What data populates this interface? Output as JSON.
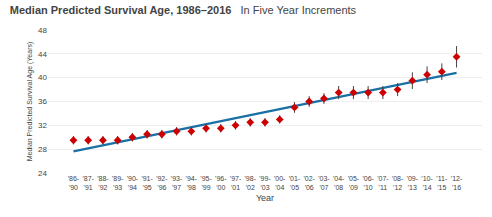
{
  "chart_data": {
    "type": "scatter",
    "title": "Median Predicted Survival Age, 1986–2016",
    "subtitle": "In Five Year Increments",
    "xlabel": "Year",
    "ylabel": "Median Predicted Survival Age (Years)",
    "categories": [
      "'86-\n'90",
      "'87-\n'91",
      "'88-\n'92",
      "'89-\n'93",
      "'90-\n'94",
      "'91-\n'95",
      "'92-\n'96",
      "'93-\n'97",
      "'94-\n'98",
      "'95-\n'99",
      "'96-\n'00",
      "'97-\n'01",
      "'98-\n'02",
      "'99-\n'03",
      "'00-\n'04",
      "'01-\n'05",
      "'02-\n'06",
      "'03-\n'07",
      "'04-\n'08",
      "'05-\n'09",
      "'06-\n'10",
      "'07-\n'11",
      "'08-\n'12",
      "'09-\n'13",
      "'10-\n'14",
      "'11-\n'15",
      "'12-\n'16"
    ],
    "series": [
      {
        "type": "line",
        "color": "#1A6FA5",
        "values": [
          27.6389,
          28.1453,
          28.6517,
          29.1581,
          29.6645,
          30.1709,
          30.6774,
          31.1838,
          31.6902,
          32.1966,
          32.703,
          33.2094,
          33.7158,
          34.2222,
          34.7286,
          35.235,
          35.7415,
          36.2479,
          36.7543,
          37.2607,
          37.7671,
          38.2735,
          38.7799,
          39.2863,
          39.7927,
          40.2991,
          40.8056
        ]
      },
      {
        "type": "scatter",
        "marker": "diamond",
        "color": "#CC0000",
        "values": [
          29.5,
          29.5,
          29.5,
          29.5,
          30.0,
          30.5,
          30.5,
          31.0,
          31.0,
          31.5,
          31.5,
          32.0,
          32.5,
          32.5,
          33.0,
          35.0,
          36.0,
          36.5,
          37.5,
          37.5,
          37.5,
          37.5,
          38.0,
          39.5,
          40.5,
          41.0,
          43.5
        ],
        "err_low": [
          0.7,
          0.7,
          0.7,
          0.7,
          0.7,
          0.7,
          0.7,
          0.7,
          0.7,
          0.7,
          0.7,
          0.7,
          0.7,
          0.7,
          0.7,
          0.9,
          0.9,
          0.9,
          1.1,
          1.1,
          1.1,
          1.1,
          1.1,
          1.4,
          1.4,
          1.4,
          1.8
        ],
        "err_high": [
          0.7,
          0.7,
          0.7,
          0.7,
          0.7,
          0.7,
          0.7,
          0.7,
          0.7,
          0.7,
          0.7,
          0.7,
          0.7,
          0.7,
          0.7,
          0.9,
          0.9,
          0.9,
          1.1,
          1.1,
          1.1,
          1.1,
          1.1,
          1.4,
          1.4,
          1.4,
          1.8
        ]
      }
    ],
    "ylim": [
      24,
      48
    ],
    "yticks": [
      24,
      28,
      32,
      36,
      40,
      44,
      48
    ],
    "grid": true
  }
}
